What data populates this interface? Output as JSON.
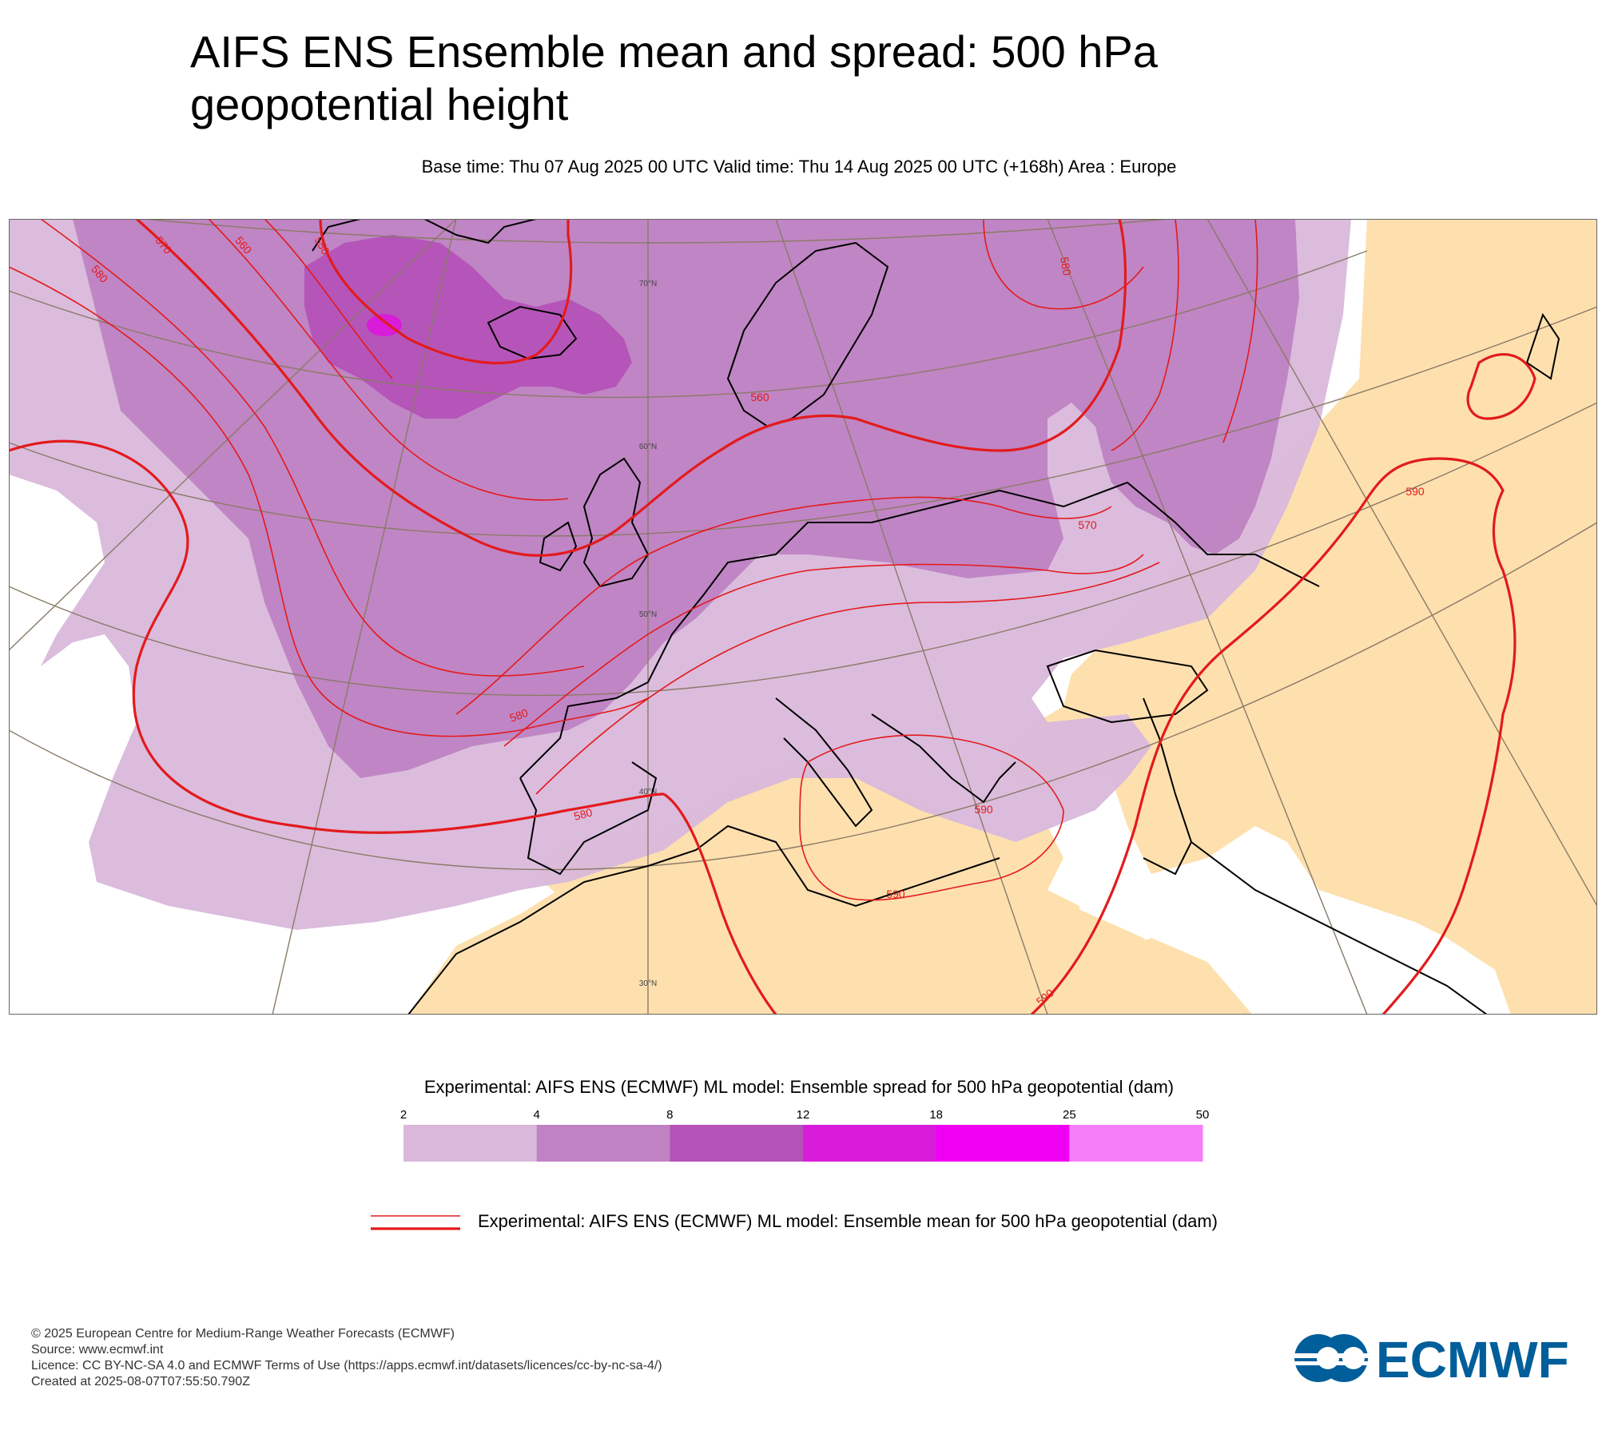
{
  "title": {
    "line1": "AIFS ENS Ensemble mean and spread: 500 hPa",
    "line2": "geopotential height"
  },
  "subtitle": "Base time: Thu 07 Aug 2025 00 UTC Valid time: Thu 14 Aug 2025 00 UTC (+168h) Area : Europe",
  "map": {
    "area": "Europe",
    "land_color": "#fde0ae",
    "sea_color": "#ffffff",
    "coastline_color": "#000000",
    "border_color": "#555555",
    "graticule_color": "#8a7a66",
    "latitude_labels": [
      "70°N",
      "60°N",
      "50°N",
      "40°N",
      "30°N"
    ],
    "contour_labels": [
      "580",
      "570",
      "560",
      "550",
      "580",
      "560",
      "570",
      "580",
      "580",
      "590",
      "590",
      "590",
      "590"
    ],
    "contour_color": "#e31a1c",
    "spread_field_levels": [
      "2-4",
      "4-8",
      "8-12",
      "12-18"
    ]
  },
  "spread_legend": {
    "title": "Experimental: AIFS ENS (ECMWF) ML model: Ensemble spread for 500 hPa geopotential (dam)",
    "ticks": [
      "2",
      "4",
      "8",
      "12",
      "18",
      "25",
      "50"
    ],
    "colors": [
      "#d9b8db",
      "#bf82c2",
      "#b452b8",
      "#d81cd9",
      "#f000f2",
      "#f67ef8"
    ]
  },
  "mean_legend": {
    "label": "Experimental: AIFS ENS (ECMWF) ML model: Ensemble mean for 500 hPa geopotential (dam)",
    "line_color": "#e31a1c"
  },
  "credits": {
    "copyright": "© 2025 European Centre for Medium-Range Weather Forecasts (ECMWF)",
    "source": "Source: www.ecmwf.int",
    "licence": "Licence: CC BY-NC-SA 4.0 and ECMWF Terms of Use (https://apps.ecmwf.int/datasets/licences/cc-by-nc-sa-4/)",
    "created": "Created at 2025-08-07T07:55:50.790Z"
  },
  "logo": {
    "text": "ECMWF",
    "color": "#005e9a"
  }
}
